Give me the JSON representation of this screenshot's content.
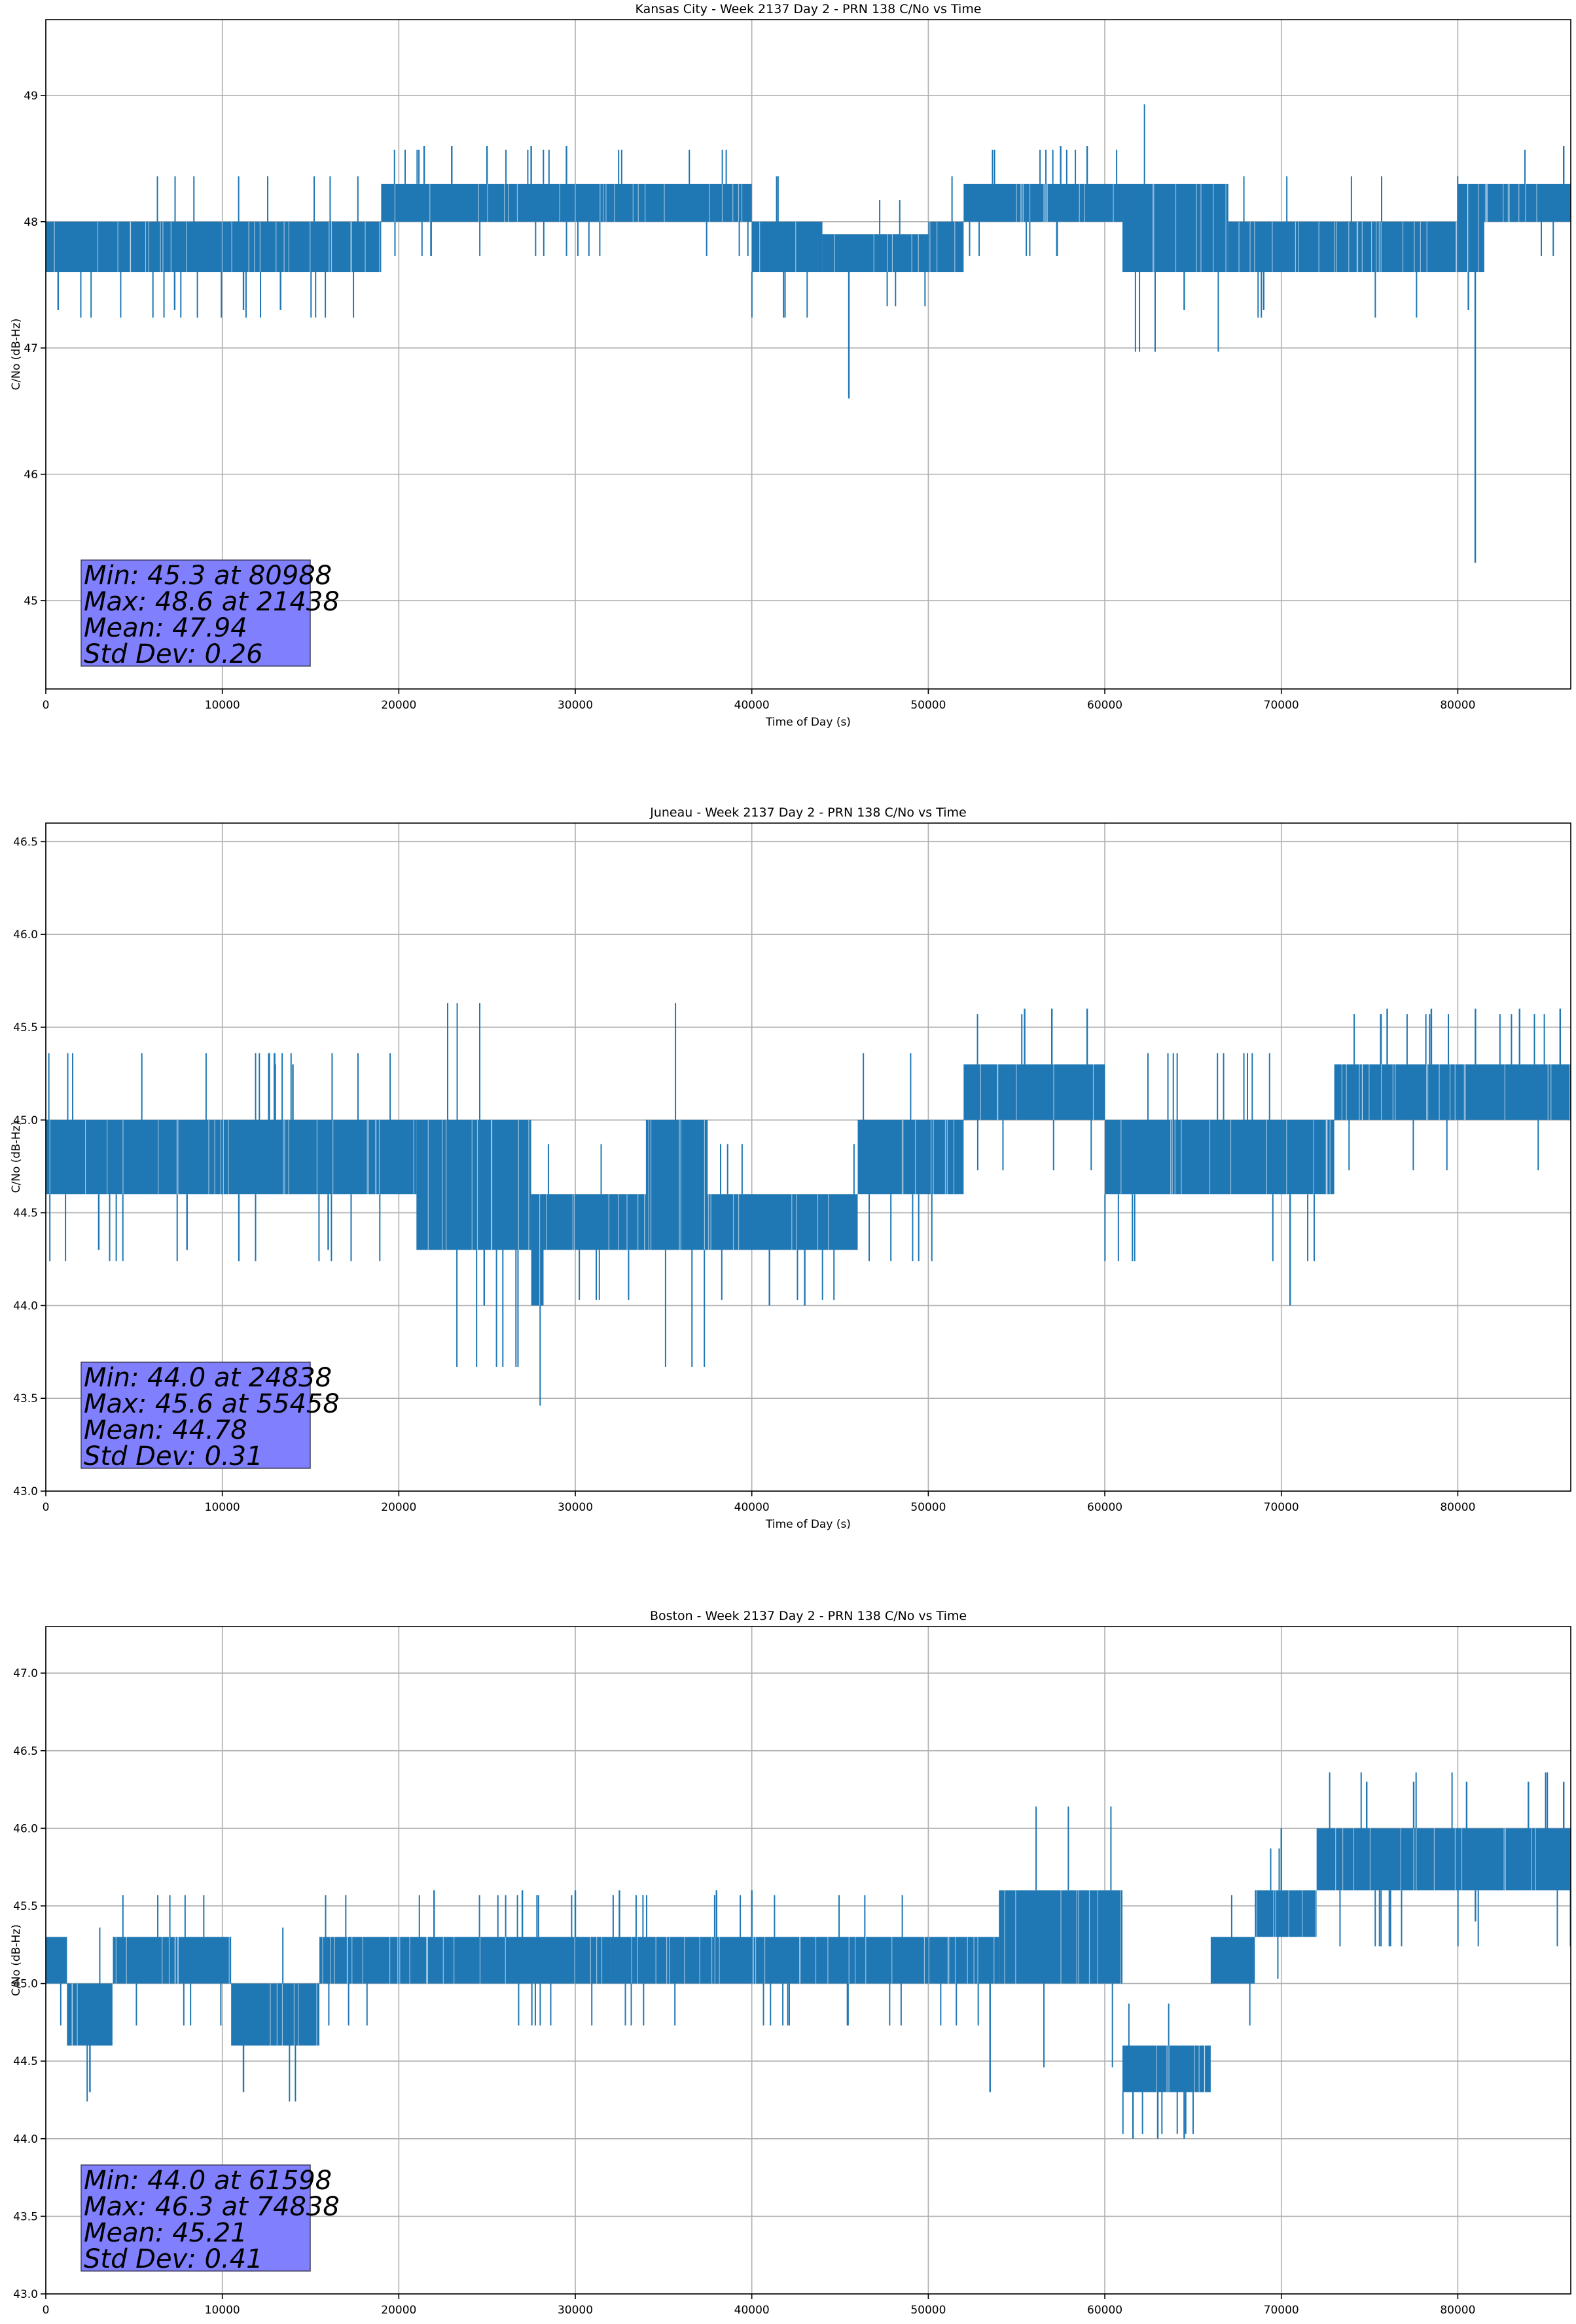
{
  "chart_data": [
    {
      "type": "line",
      "title": "Kansas City - Week 2137 Day 2 - PRN 138 C/No vs Time",
      "xlabel": "Time of Day (s)",
      "ylabel": "C/No (dB-Hz)",
      "xlim": [
        0,
        86400
      ],
      "ylim": [
        44.3,
        49.6
      ],
      "xticks": [
        0,
        10000,
        20000,
        30000,
        40000,
        50000,
        60000,
        70000,
        80000
      ],
      "xtick_labels": [
        "0",
        "10000",
        "20000",
        "30000",
        "40000",
        "50000",
        "60000",
        "70000",
        "80000"
      ],
      "yticks": [
        45,
        46,
        47,
        48,
        49
      ],
      "ytick_labels": [
        "45",
        "46",
        "47",
        "48",
        "49"
      ],
      "grid": true,
      "color": "#1f77b4",
      "levels": [
        47.6,
        48.0,
        48.3
      ],
      "series": [
        {
          "segments": [
            {
              "x": [
                0,
                19000
              ],
              "low": 47.6,
              "high": 48.0
            },
            {
              "x": [
                19000,
                40000
              ],
              "low": 48.0,
              "high": 48.3
            },
            {
              "x": [
                40000,
                44000
              ],
              "low": 47.6,
              "high": 48.0
            },
            {
              "x": [
                44000,
                50000
              ],
              "low": 47.6,
              "high": 47.9
            },
            {
              "x": [
                50000,
                52000
              ],
              "low": 47.6,
              "high": 48.0
            },
            {
              "x": [
                52000,
                61000
              ],
              "low": 48.0,
              "high": 48.3
            },
            {
              "x": [
                61000,
                67000
              ],
              "low": 47.6,
              "high": 48.3
            },
            {
              "x": [
                67000,
                80000
              ],
              "low": 47.6,
              "high": 48.0
            },
            {
              "x": [
                80000,
                81500
              ],
              "low": 47.6,
              "high": 48.3
            },
            {
              "x": [
                81500,
                86400
              ],
              "low": 48.0,
              "high": 48.3
            }
          ],
          "spikes": [
            {
              "x": 21438,
              "y": 48.6
            },
            {
              "x": 23000,
              "y": 48.6
            },
            {
              "x": 25000,
              "y": 48.6
            },
            {
              "x": 27500,
              "y": 48.6
            },
            {
              "x": 29500,
              "y": 48.6
            },
            {
              "x": 57500,
              "y": 48.6
            },
            {
              "x": 59000,
              "y": 48.6
            },
            {
              "x": 86000,
              "y": 48.6
            },
            {
              "x": 700,
              "y": 47.3
            },
            {
              "x": 7300,
              "y": 47.3
            },
            {
              "x": 11200,
              "y": 47.3
            },
            {
              "x": 13300,
              "y": 47.3
            },
            {
              "x": 45500,
              "y": 46.6
            },
            {
              "x": 80988,
              "y": 45.3
            },
            {
              "x": 80600,
              "y": 47.3
            },
            {
              "x": 64500,
              "y": 47.3
            },
            {
              "x": 69000,
              "y": 47.3
            }
          ]
        }
      ],
      "stats": [
        "Min: 45.3 at 80988",
        "Max: 48.6 at 21438",
        "Mean: 47.94",
        "Std Dev: 0.26"
      ]
    },
    {
      "type": "line",
      "title": "Juneau - Week 2137 Day 2 - PRN 138 C/No vs Time",
      "xlabel": "Time of Day (s)",
      "ylabel": "C/No (dB-Hz)",
      "xlim": [
        0,
        86400
      ],
      "ylim": [
        43.0,
        46.6
      ],
      "xticks": [
        0,
        10000,
        20000,
        30000,
        40000,
        50000,
        60000,
        70000,
        80000
      ],
      "xtick_labels": [
        "0",
        "10000",
        "20000",
        "30000",
        "40000",
        "50000",
        "60000",
        "70000",
        "80000"
      ],
      "yticks": [
        43.0,
        43.5,
        44.0,
        44.5,
        45.0,
        45.5,
        46.0,
        46.5
      ],
      "ytick_labels": [
        "43.0",
        "43.5",
        "44.0",
        "44.5",
        "45.0",
        "45.5",
        "46.0",
        "46.5"
      ],
      "grid": true,
      "color": "#1f77b4",
      "series": [
        {
          "segments": [
            {
              "x": [
                0,
                21000
              ],
              "low": 44.6,
              "high": 45.0
            },
            {
              "x": [
                21000,
                27500
              ],
              "low": 44.3,
              "high": 45.0
            },
            {
              "x": [
                27500,
                28200
              ],
              "low": 44.0,
              "high": 44.6
            },
            {
              "x": [
                28200,
                34000
              ],
              "low": 44.3,
              "high": 44.6
            },
            {
              "x": [
                34000,
                37500
              ],
              "low": 44.3,
              "high": 45.0
            },
            {
              "x": [
                37500,
                46000
              ],
              "low": 44.3,
              "high": 44.6
            },
            {
              "x": [
                46000,
                52000
              ],
              "low": 44.6,
              "high": 45.0
            },
            {
              "x": [
                52000,
                60000
              ],
              "low": 45.0,
              "high": 45.3
            },
            {
              "x": [
                60000,
                73000
              ],
              "low": 44.6,
              "high": 45.0
            },
            {
              "x": [
                73000,
                86400
              ],
              "low": 45.0,
              "high": 45.3
            }
          ],
          "spikes": [
            {
              "x": 13000,
              "y": 45.3
            },
            {
              "x": 14000,
              "y": 45.3
            },
            {
              "x": 24838,
              "y": 44.0
            },
            {
              "x": 41000,
              "y": 44.0
            },
            {
              "x": 43000,
              "y": 44.0
            },
            {
              "x": 70500,
              "y": 44.0
            },
            {
              "x": 55458,
              "y": 45.6
            },
            {
              "x": 57000,
              "y": 45.6
            },
            {
              "x": 59000,
              "y": 45.6
            },
            {
              "x": 76000,
              "y": 45.6
            },
            {
              "x": 78500,
              "y": 45.6
            },
            {
              "x": 81000,
              "y": 45.6
            },
            {
              "x": 83500,
              "y": 45.6
            },
            {
              "x": 85800,
              "y": 45.6
            },
            {
              "x": 3000,
              "y": 44.3
            },
            {
              "x": 8000,
              "y": 44.3
            },
            {
              "x": 16000,
              "y": 44.3
            }
          ]
        }
      ],
      "stats": [
        "Min: 44.0 at 24838",
        "Max: 45.6 at 55458",
        "Mean: 44.78",
        "Std Dev: 0.31"
      ]
    },
    {
      "type": "line",
      "title": "Boston - Week 2137 Day 2 - PRN 138 C/No vs Time",
      "xlabel": "Time of Day (s)",
      "ylabel": "C/No (dB-Hz)",
      "xlim": [
        0,
        86400
      ],
      "ylim": [
        43.0,
        47.3
      ],
      "xticks": [
        0,
        10000,
        20000,
        30000,
        40000,
        50000,
        60000,
        70000,
        80000
      ],
      "xtick_labels": [
        "0",
        "10000",
        "20000",
        "30000",
        "40000",
        "50000",
        "60000",
        "70000",
        "80000"
      ],
      "yticks": [
        43.0,
        43.5,
        44.0,
        44.5,
        45.0,
        45.5,
        46.0,
        46.5,
        47.0
      ],
      "ytick_labels": [
        "43.0",
        "43.5",
        "44.0",
        "44.5",
        "45.0",
        "45.5",
        "46.0",
        "46.5",
        "47.0"
      ],
      "grid": true,
      "color": "#1f77b4",
      "series": [
        {
          "segments": [
            {
              "x": [
                0,
                1200
              ],
              "low": 45.0,
              "high": 45.3
            },
            {
              "x": [
                1200,
                3800
              ],
              "low": 44.6,
              "high": 45.0
            },
            {
              "x": [
                3800,
                10500
              ],
              "low": 45.0,
              "high": 45.3
            },
            {
              "x": [
                10500,
                15500
              ],
              "low": 44.6,
              "high": 45.0
            },
            {
              "x": [
                15500,
                32000
              ],
              "low": 45.0,
              "high": 45.3
            },
            {
              "x": [
                32000,
                54000
              ],
              "low": 45.0,
              "high": 45.3
            },
            {
              "x": [
                54000,
                61000
              ],
              "low": 45.0,
              "high": 45.6
            },
            {
              "x": [
                61000,
                66000
              ],
              "low": 44.3,
              "high": 44.6
            },
            {
              "x": [
                66000,
                68500
              ],
              "low": 45.0,
              "high": 45.3
            },
            {
              "x": [
                68500,
                72000
              ],
              "low": 45.3,
              "high": 45.6
            },
            {
              "x": [
                72000,
                86400
              ],
              "low": 45.6,
              "high": 46.0
            }
          ],
          "spikes": [
            {
              "x": 2500,
              "y": 44.3
            },
            {
              "x": 11200,
              "y": 44.3
            },
            {
              "x": 53500,
              "y": 44.3
            },
            {
              "x": 61598,
              "y": 44.0
            },
            {
              "x": 63000,
              "y": 44.0
            },
            {
              "x": 64500,
              "y": 44.0
            },
            {
              "x": 22000,
              "y": 45.6
            },
            {
              "x": 27000,
              "y": 45.6
            },
            {
              "x": 30000,
              "y": 45.6
            },
            {
              "x": 32500,
              "y": 45.6
            },
            {
              "x": 38000,
              "y": 45.6
            },
            {
              "x": 40000,
              "y": 45.6
            },
            {
              "x": 70000,
              "y": 46.0
            },
            {
              "x": 74838,
              "y": 46.3
            },
            {
              "x": 77500,
              "y": 46.3
            },
            {
              "x": 80500,
              "y": 46.3
            },
            {
              "x": 84000,
              "y": 46.3
            },
            {
              "x": 86000,
              "y": 46.3
            },
            {
              "x": 81000,
              "y": 45.4
            }
          ]
        }
      ],
      "stats": [
        "Min: 44.0 at 61598",
        "Max: 46.3 at 74838",
        "Mean: 45.21",
        "Std Dev: 0.41"
      ]
    }
  ]
}
